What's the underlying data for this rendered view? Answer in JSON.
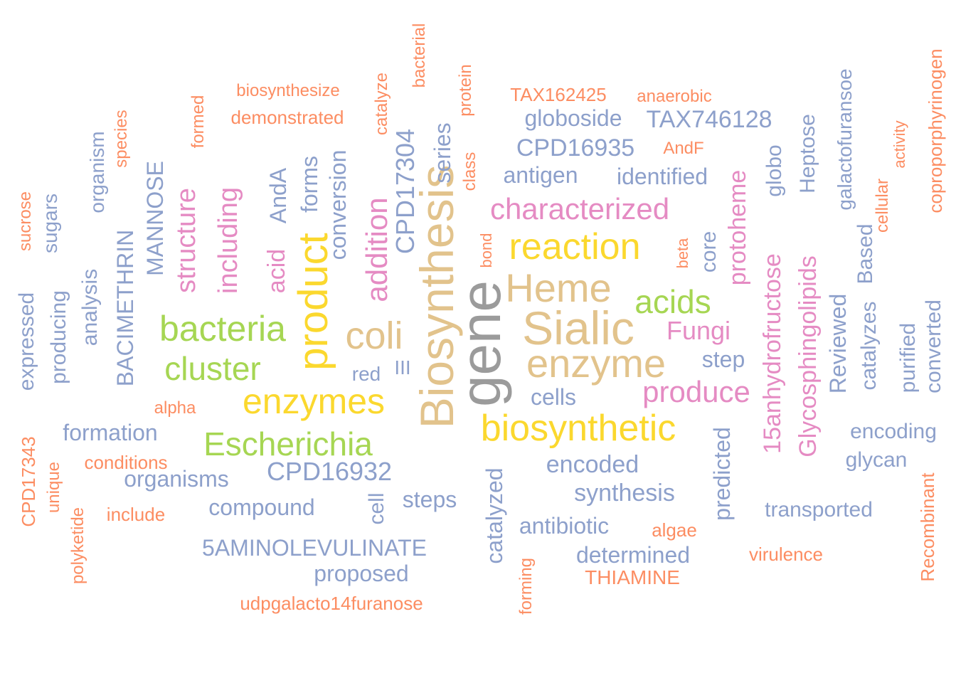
{
  "palette": {
    "gray": "#9b9b9b",
    "tan": "#e2c38c",
    "yellow": "#fbd82e",
    "green": "#a6d653",
    "pink": "#e58bc3",
    "blue": "#8da0cb",
    "orange": "#fc8d62"
  },
  "words": [
    {
      "text": "gene",
      "color": "gray"
    },
    {
      "text": "Biosynthesis",
      "color": "tan"
    },
    {
      "text": "Sialic",
      "color": "tan"
    },
    {
      "text": "enzyme",
      "color": "tan"
    },
    {
      "text": "Heme",
      "color": "tan"
    },
    {
      "text": "coli",
      "color": "tan"
    },
    {
      "text": "product",
      "color": "yellow"
    },
    {
      "text": "enzymes",
      "color": "yellow"
    },
    {
      "text": "reaction",
      "color": "yellow"
    },
    {
      "text": "biosynthetic",
      "color": "yellow"
    },
    {
      "text": "bacteria",
      "color": "green"
    },
    {
      "text": "Escherichia",
      "color": "green"
    },
    {
      "text": "cluster",
      "color": "green"
    },
    {
      "text": "acids",
      "color": "green"
    },
    {
      "text": "characterized",
      "color": "pink"
    },
    {
      "text": "produce",
      "color": "pink"
    },
    {
      "text": "Fungi",
      "color": "pink"
    },
    {
      "text": "addition",
      "color": "pink"
    },
    {
      "text": "structure",
      "color": "pink"
    },
    {
      "text": "including",
      "color": "pink"
    },
    {
      "text": "acid",
      "color": "pink"
    },
    {
      "text": "protoheme",
      "color": "pink"
    },
    {
      "text": "15anhydrofructose",
      "color": "pink"
    },
    {
      "text": "Glycosphingolipids",
      "color": "pink"
    },
    {
      "text": "CPD17304",
      "color": "blue"
    },
    {
      "text": "CPD16932",
      "color": "blue"
    },
    {
      "text": "CPD16935",
      "color": "blue"
    },
    {
      "text": "TAX746128",
      "color": "blue"
    },
    {
      "text": "globoside",
      "color": "blue"
    },
    {
      "text": "antigen",
      "color": "blue"
    },
    {
      "text": "identified",
      "color": "blue"
    },
    {
      "text": "conversion",
      "color": "blue"
    },
    {
      "text": "forms",
      "color": "blue"
    },
    {
      "text": "AndA",
      "color": "blue"
    },
    {
      "text": "series",
      "color": "blue"
    },
    {
      "text": "BACIMETHRIN",
      "color": "blue"
    },
    {
      "text": "MANNOSE",
      "color": "blue"
    },
    {
      "text": "organism",
      "color": "blue"
    },
    {
      "text": "sugars",
      "color": "blue"
    },
    {
      "text": "analysis",
      "color": "blue"
    },
    {
      "text": "producing",
      "color": "blue"
    },
    {
      "text": "expressed",
      "color": "blue"
    },
    {
      "text": "formation",
      "color": "blue"
    },
    {
      "text": "organisms",
      "color": "blue"
    },
    {
      "text": "compound",
      "color": "blue"
    },
    {
      "text": "5AMINOLEVULINATE",
      "color": "blue"
    },
    {
      "text": "proposed",
      "color": "blue"
    },
    {
      "text": "steps",
      "color": "blue"
    },
    {
      "text": "cell",
      "color": "blue"
    },
    {
      "text": "red",
      "color": "blue"
    },
    {
      "text": "III",
      "color": "blue"
    },
    {
      "text": "cells",
      "color": "blue"
    },
    {
      "text": "encoded",
      "color": "blue"
    },
    {
      "text": "synthesis",
      "color": "blue"
    },
    {
      "text": "antibiotic",
      "color": "blue"
    },
    {
      "text": "determined",
      "color": "blue"
    },
    {
      "text": "catalyzed",
      "color": "blue"
    },
    {
      "text": "step",
      "color": "blue"
    },
    {
      "text": "core",
      "color": "blue"
    },
    {
      "text": "globo",
      "color": "blue"
    },
    {
      "text": "Heptose",
      "color": "blue"
    },
    {
      "text": "predicted",
      "color": "blue"
    },
    {
      "text": "Reviewed",
      "color": "blue"
    },
    {
      "text": "galactofuransoe",
      "color": "blue"
    },
    {
      "text": "Based",
      "color": "blue"
    },
    {
      "text": "catalyzes",
      "color": "blue"
    },
    {
      "text": "purified",
      "color": "blue"
    },
    {
      "text": "converted",
      "color": "blue"
    },
    {
      "text": "encoding",
      "color": "blue"
    },
    {
      "text": "glycan",
      "color": "blue"
    },
    {
      "text": "transported",
      "color": "blue"
    },
    {
      "text": "biosynthesize",
      "color": "orange"
    },
    {
      "text": "demonstrated",
      "color": "orange"
    },
    {
      "text": "formed",
      "color": "orange"
    },
    {
      "text": "species",
      "color": "orange"
    },
    {
      "text": "sucrose",
      "color": "orange"
    },
    {
      "text": "catalyze",
      "color": "orange"
    },
    {
      "text": "bacterial",
      "color": "orange"
    },
    {
      "text": "protein",
      "color": "orange"
    },
    {
      "text": "class",
      "color": "orange"
    },
    {
      "text": "bond",
      "color": "orange"
    },
    {
      "text": "TAX162425",
      "color": "orange"
    },
    {
      "text": "anaerobic",
      "color": "orange"
    },
    {
      "text": "AndF",
      "color": "orange"
    },
    {
      "text": "beta",
      "color": "orange"
    },
    {
      "text": "cellular",
      "color": "orange"
    },
    {
      "text": "activity",
      "color": "orange"
    },
    {
      "text": "coproporphyrinogen",
      "color": "orange"
    },
    {
      "text": "alpha",
      "color": "orange"
    },
    {
      "text": "conditions",
      "color": "orange"
    },
    {
      "text": "CPD17343",
      "color": "orange"
    },
    {
      "text": "unique",
      "color": "orange"
    },
    {
      "text": "polyketide",
      "color": "orange"
    },
    {
      "text": "include",
      "color": "orange"
    },
    {
      "text": "udpgalacto14furanose",
      "color": "orange"
    },
    {
      "text": "forming",
      "color": "orange"
    },
    {
      "text": "THIAMINE",
      "color": "orange"
    },
    {
      "text": "algae",
      "color": "orange"
    },
    {
      "text": "virulence",
      "color": "orange"
    },
    {
      "text": "Recombinant",
      "color": "orange"
    }
  ]
}
